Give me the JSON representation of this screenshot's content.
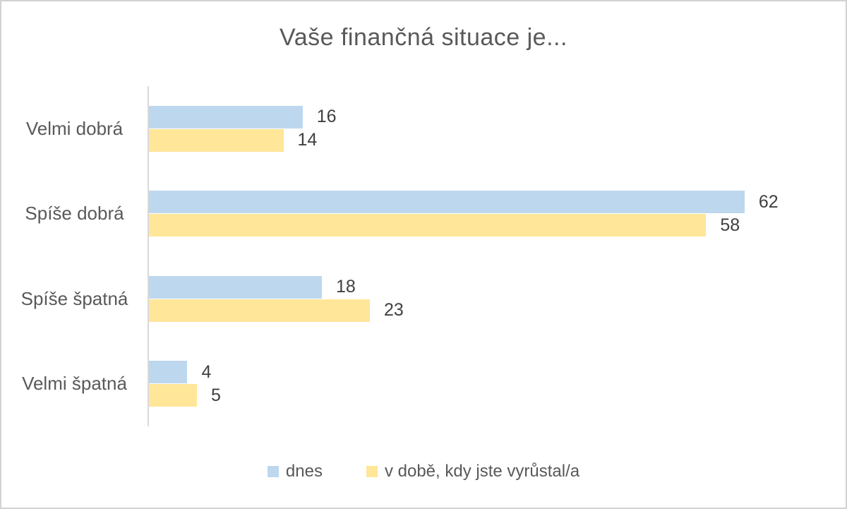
{
  "chart_data": {
    "type": "bar",
    "orientation": "horizontal",
    "title": "Vaše finančná situace je...",
    "categories": [
      "Velmi dobrá",
      "Spíše dobrá",
      "Spíše špatná",
      "Velmi špatná"
    ],
    "series": [
      {
        "name": "dnes",
        "color": "#BDD7EE",
        "values": [
          16,
          62,
          18,
          4
        ]
      },
      {
        "name": "v době, kdy jste vyrůstal/a",
        "color": "#FFE699",
        "values": [
          14,
          58,
          23,
          5
        ]
      }
    ],
    "xlim": [
      0,
      72
    ],
    "grid": false,
    "data_labels": true,
    "legend_position": "bottom",
    "colors": {
      "title_text": "#595959",
      "category_text": "#595959",
      "data_label_text": "#404040",
      "axis_line": "#D9D9D9",
      "frame_border": "#D2D2D2",
      "background": "#FFFFFF"
    }
  }
}
